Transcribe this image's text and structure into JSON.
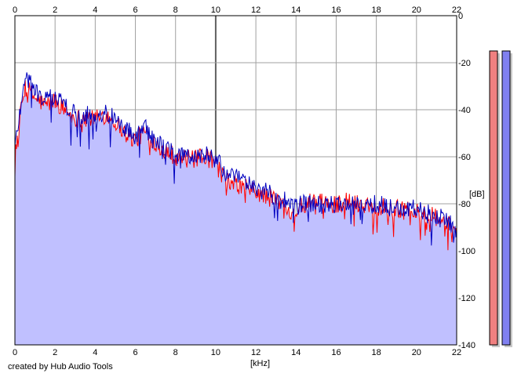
{
  "app": {
    "credit": "created by Hub Audio Tools"
  },
  "chart_data": {
    "type": "area",
    "title": "",
    "xlabel": "[kHz]",
    "ylabel": "[dB]",
    "xlim": [
      0,
      22
    ],
    "ylim": [
      -140,
      0
    ],
    "x_ticks": [
      0,
      2,
      4,
      6,
      8,
      10,
      12,
      14,
      16,
      18,
      20,
      22
    ],
    "y_ticks": [
      0,
      -20,
      -40,
      -60,
      -80,
      -100,
      -120,
      -140
    ],
    "x_ticks_top": true,
    "y_axis_side": "right",
    "grid": true,
    "legend": "none",
    "series": [
      {
        "channel": "left",
        "color": "#ff0000",
        "x": [
          0,
          0.5,
          1,
          1.5,
          2,
          2.5,
          3,
          3.5,
          4,
          4.5,
          5,
          5.5,
          6,
          6.5,
          7,
          7.5,
          8,
          8.5,
          9,
          9.5,
          10,
          10.5,
          11,
          11.5,
          12,
          12.5,
          13,
          13.5,
          14,
          14.5,
          15,
          15.5,
          16,
          16.5,
          17,
          17.5,
          18,
          18.5,
          19,
          19.5,
          20,
          20.5,
          21,
          21.5,
          22
        ],
        "values": [
          -58,
          -30,
          -35,
          -38,
          -36,
          -40,
          -44,
          -43,
          -44,
          -42,
          -45,
          -50,
          -53,
          -49,
          -54,
          -57,
          -60,
          -61,
          -61,
          -60,
          -63,
          -70,
          -72,
          -73,
          -75,
          -77,
          -78,
          -82,
          -83,
          -80,
          -79,
          -80,
          -80,
          -79,
          -80,
          -80,
          -81,
          -81,
          -82,
          -82,
          -84,
          -84,
          -86,
          -88,
          -93
        ]
      },
      {
        "channel": "right",
        "color": "#0000c0",
        "x": [
          0,
          0.5,
          1,
          1.5,
          2,
          2.5,
          3,
          3.5,
          4,
          4.5,
          5,
          5.5,
          6,
          6.5,
          7,
          7.5,
          8,
          8.5,
          9,
          9.5,
          10,
          10.5,
          11,
          11.5,
          12,
          12.5,
          13,
          13.5,
          14,
          14.5,
          15,
          15.5,
          16,
          16.5,
          17,
          17.5,
          18,
          18.5,
          19,
          19.5,
          20,
          20.5,
          21,
          21.5,
          22
        ],
        "values": [
          -56,
          -25,
          -32,
          -36,
          -34,
          -38,
          -42,
          -42,
          -43,
          -41,
          -44,
          -48,
          -51,
          -48,
          -53,
          -56,
          -59,
          -60,
          -60,
          -59,
          -61,
          -67,
          -69,
          -71,
          -73,
          -75,
          -77,
          -79,
          -81,
          -80,
          -80,
          -81,
          -80,
          -80,
          -81,
          -81,
          -80,
          -81,
          -82,
          -82,
          -82,
          -83,
          -86,
          -86,
          -92
        ]
      }
    ],
    "level_meters": [
      {
        "channel": "left",
        "color": "#f08080",
        "level_db": -9
      },
      {
        "channel": "right",
        "color": "#8080f0",
        "level_db": -9
      }
    ],
    "fill_color": "#c0c0ff"
  }
}
